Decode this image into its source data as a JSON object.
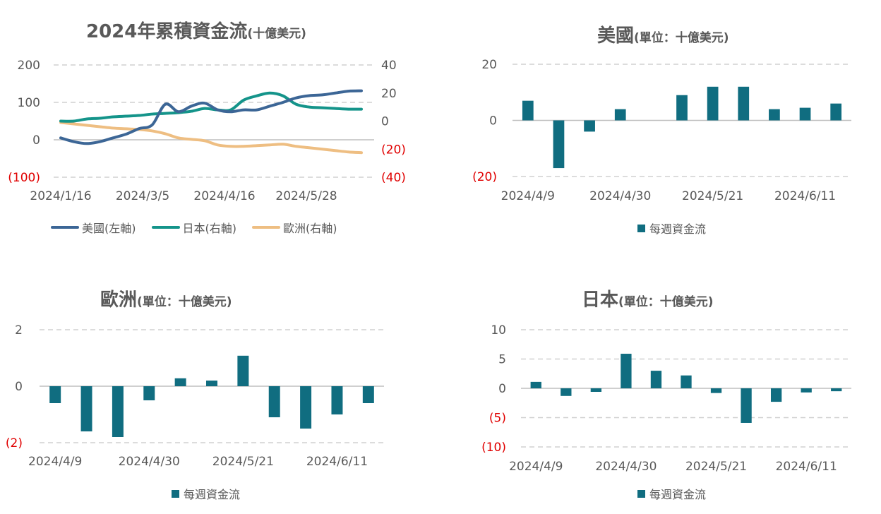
{
  "colors": {
    "us": "#3c6696",
    "japan": "#14948a",
    "europe": "#eebe82",
    "bar": "#106d80",
    "negative_label": "#e00000",
    "axis_label": "#595959",
    "grid": "#d0d0d0"
  },
  "chart_data": [
    {
      "id": "cumulative",
      "type": "line",
      "title": "2024年累積資金流",
      "subtitle": "(十億美元)",
      "x_tick_labels": [
        "2024/1/16",
        "2024/3/5",
        "2024/4/16",
        "2024/5/28"
      ],
      "y_left": {
        "lim": [
          -100,
          200
        ],
        "ticks": [
          200,
          100,
          0,
          -100
        ],
        "tick_labels": [
          "200",
          "100",
          "0",
          "(100)"
        ]
      },
      "y_right": {
        "lim": [
          -40,
          40
        ],
        "ticks": [
          40,
          20,
          0,
          -20,
          -40
        ],
        "tick_labels": [
          "40",
          "20",
          "0",
          "(20)",
          "(40)"
        ]
      },
      "grid": true,
      "legend_position": "bottom",
      "n_points": 24,
      "series": [
        {
          "name": "美國(左軸)",
          "axis": "left",
          "color_key": "us",
          "values": [
            5,
            -5,
            -10,
            -5,
            5,
            15,
            30,
            40,
            95,
            75,
            90,
            98,
            80,
            75,
            80,
            80,
            90,
            100,
            112,
            118,
            120,
            125,
            130,
            131
          ]
        },
        {
          "name": "日本(右軸)",
          "axis": "right",
          "color_key": "japan",
          "values": [
            0,
            0,
            1.5,
            2,
            3,
            3.5,
            4,
            5,
            5.5,
            6,
            7,
            9,
            8,
            8,
            15,
            18,
            20,
            18,
            12,
            10,
            9.5,
            9,
            8.5,
            8.5
          ]
        },
        {
          "name": "歐洲(右軸)",
          "axis": "right",
          "color_key": "europe",
          "values": [
            -1,
            -2,
            -3,
            -4,
            -5,
            -5.5,
            -6,
            -7,
            -9,
            -12,
            -13,
            -14,
            -17,
            -18,
            -18,
            -17.5,
            -17,
            -16.5,
            -18,
            -19,
            -20,
            -21,
            -22,
            -22.5
          ]
        }
      ]
    },
    {
      "id": "us",
      "type": "bar",
      "title": "美國",
      "subtitle": "(單位：十億美元)",
      "x_tick_labels": [
        "2024/4/9",
        "2024/4/30",
        "2024/5/21",
        "2024/6/11"
      ],
      "ylim": [
        -20,
        20
      ],
      "y_ticks": [
        20,
        0,
        -20
      ],
      "y_tick_labels": [
        "20",
        "0",
        "(20)"
      ],
      "series": [
        {
          "name": "每週資金流",
          "values": [
            7,
            -17,
            -4,
            4,
            0,
            9,
            12,
            12,
            4,
            4.5,
            6
          ]
        }
      ]
    },
    {
      "id": "europe",
      "type": "bar",
      "title": "歐洲",
      "subtitle": "(單位：十億美元)",
      "x_tick_labels": [
        "2024/4/9",
        "2024/4/30",
        "2024/5/21",
        "2024/6/11"
      ],
      "ylim": [
        -2,
        2
      ],
      "y_ticks": [
        2,
        0,
        -2
      ],
      "y_tick_labels": [
        "2",
        "0",
        "(2)"
      ],
      "series": [
        {
          "name": "每週資金流",
          "values": [
            -0.6,
            -1.6,
            -1.8,
            -0.5,
            0.28,
            0.2,
            1.08,
            -1.1,
            -1.5,
            -1.0,
            -0.6
          ]
        }
      ]
    },
    {
      "id": "japan",
      "type": "bar",
      "title": "日本",
      "subtitle": "(單位：十億美元)",
      "x_tick_labels": [
        "2024/4/9",
        "2024/4/30",
        "2024/5/21",
        "2024/6/11"
      ],
      "ylim": [
        -10,
        10
      ],
      "y_ticks": [
        10,
        5,
        0,
        -5,
        -10
      ],
      "y_tick_labels": [
        "10",
        "5",
        "0",
        "(5)",
        "(10)"
      ],
      "series": [
        {
          "name": "每週資金流",
          "values": [
            1.1,
            -1.3,
            -0.6,
            5.9,
            3.0,
            2.2,
            -0.8,
            -5.9,
            -2.3,
            -0.7,
            -0.5
          ]
        }
      ]
    }
  ]
}
